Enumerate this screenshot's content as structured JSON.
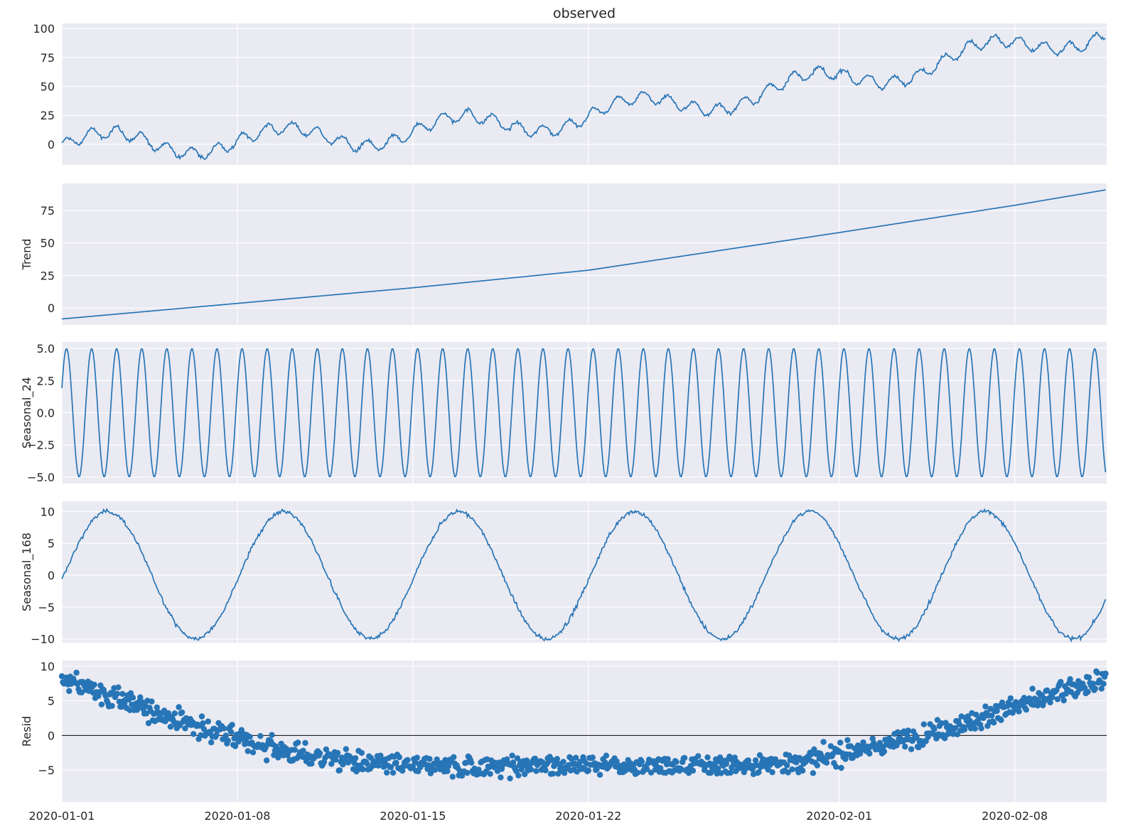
{
  "chart_data": {
    "type": "line",
    "title": "observed",
    "sampling": "hourly",
    "n_points": 1000,
    "x_start": "2020-01-01",
    "x_tick_labels": [
      {
        "day": 0,
        "label": "2020-01-01"
      },
      {
        "day": 7,
        "label": "2020-01-08"
      },
      {
        "day": 14,
        "label": "2020-01-15"
      },
      {
        "day": 21,
        "label": "2020-01-22"
      },
      {
        "day": 31,
        "label": "2020-02-01"
      },
      {
        "day": 38,
        "label": "2020-02-08"
      }
    ],
    "line_color": "#2775b6",
    "background": "#eaeaf2",
    "panels": [
      {
        "name": "observed",
        "ylabel": "",
        "kind": "line",
        "ylim": [
          -17.8,
          104.3
        ],
        "yticks": [
          0,
          25,
          50,
          75,
          100
        ],
        "ytick_labels": [
          "0",
          "25",
          "50",
          "75",
          "100"
        ]
      },
      {
        "name": "trend",
        "ylabel": "Trend",
        "kind": "line",
        "ylim": [
          -13.1,
          95.8
        ],
        "yticks": [
          0,
          25,
          50,
          75
        ],
        "ytick_labels": [
          "0",
          "25",
          "50",
          "75"
        ]
      },
      {
        "name": "seasonal_24",
        "ylabel": "Seasonal_24",
        "kind": "line",
        "ylim": [
          -5.5,
          5.5
        ],
        "yticks": [
          -5,
          -2.5,
          0,
          2.5,
          5
        ],
        "ytick_labels": [
          "−5.0",
          "−2.5",
          "0.0",
          "2.5",
          "5.0"
        ]
      },
      {
        "name": "seasonal_168",
        "ylabel": "Seasonal_168",
        "kind": "line",
        "ylim": [
          -10.6,
          11.6
        ],
        "yticks": [
          -10,
          -5,
          0,
          5,
          10
        ],
        "ytick_labels": [
          "−10",
          "−5",
          "0",
          "5",
          "10"
        ]
      },
      {
        "name": "resid",
        "ylabel": "Resid",
        "kind": "scatter",
        "ylim": [
          -9.6,
          10.8
        ],
        "yticks": [
          -5,
          0,
          5,
          10
        ],
        "ytick_labels": [
          "−5",
          "0",
          "5",
          "10"
        ]
      }
    ],
    "trend_knots": {
      "day": [
        0,
        7,
        14,
        21,
        31,
        38,
        41.67
      ],
      "value": [
        -8.5,
        3.5,
        15.5,
        29,
        58,
        79,
        91
      ]
    },
    "seasonal_24": {
      "amplitude": 5,
      "period_hours": 24,
      "peak_hour": 4.5
    },
    "seasonal_168": {
      "amplitude": 10,
      "period_hours": 168,
      "peak_hour": 44,
      "noise": 0.5
    },
    "resid_daily": [
      8,
      6.8,
      5.6,
      4.3,
      3,
      1.8,
      0.6,
      -0.6,
      -1.6,
      -2.4,
      -3,
      -3.5,
      -3.9,
      -4.2,
      -4.4,
      -4.5,
      -4.5,
      -4.5,
      -4.4,
      -4.3,
      -4.2,
      -4.2,
      -4.3,
      -4.4,
      -4.5,
      -4.5,
      -4.4,
      -4.3,
      -4.1,
      -3.8,
      -3.4,
      -2.8,
      -2,
      -1.2,
      -0.3,
      0.7,
      1.8,
      2.9,
      4,
      5.2,
      6.4,
      7.6,
      8.5
    ],
    "resid_noise": 1.1
  }
}
